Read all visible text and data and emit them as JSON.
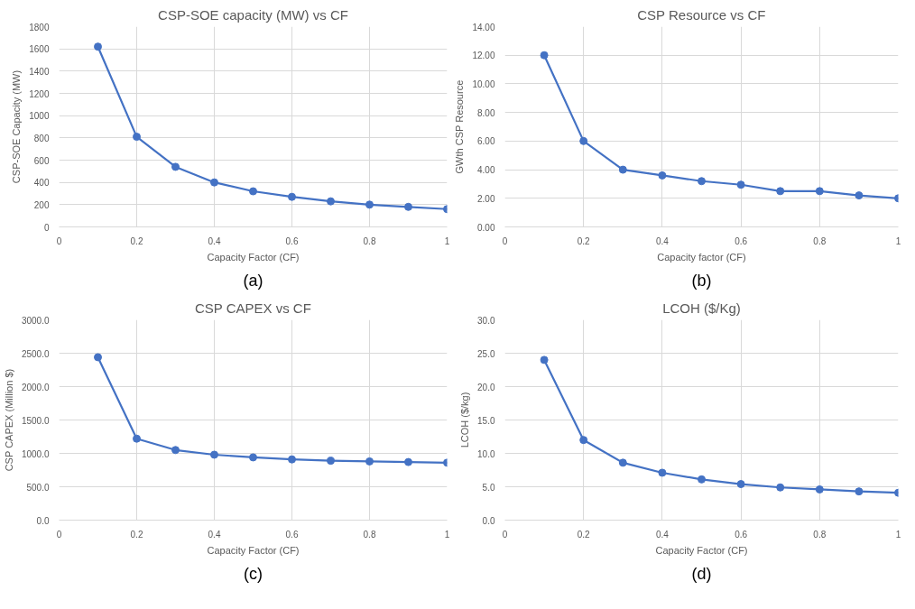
{
  "chart_data": [
    {
      "type": "line",
      "title": "CSP-SOE capacity (MW) vs CF",
      "xlabel": "Capacity Factor (CF)",
      "ylabel": "CSP-SOE Capacity (MW)",
      "annotations": [
        "(a)"
      ],
      "x": [
        0.1,
        0.2,
        0.3,
        0.4,
        0.5,
        0.6,
        0.7,
        0.8,
        0.9,
        1
      ],
      "series": [
        {
          "color": "#4472c4",
          "values": [
            1620,
            810,
            540,
            400,
            320,
            270,
            230,
            200,
            180,
            160
          ]
        }
      ],
      "xlim": [
        0,
        1
      ],
      "xticks": [
        0,
        0.2,
        0.4,
        0.6,
        0.8,
        1
      ],
      "ylim": [
        0,
        1800
      ],
      "yticks": [
        0,
        200,
        400,
        600,
        800,
        1000,
        1200,
        1400,
        1600,
        1800
      ],
      "grid": true,
      "marker": "circle",
      "line_style": "solid"
    },
    {
      "type": "line",
      "title": "CSP Resource vs CF",
      "xlabel": "Capacity factor (CF)",
      "ylabel": "GWth CSP Resource",
      "annotations": [
        "(b)"
      ],
      "x": [
        0.1,
        0.2,
        0.3,
        0.4,
        0.5,
        0.6,
        0.7,
        0.8,
        0.9,
        1
      ],
      "series": [
        {
          "color": "#4472c4",
          "values": [
            12,
            6,
            4,
            3.6,
            3.2,
            2.95,
            2.5,
            2.5,
            2.2,
            2.0
          ]
        }
      ],
      "xlim": [
        0,
        1
      ],
      "xticks": [
        0,
        0.2,
        0.4,
        0.6,
        0.8,
        1
      ],
      "ylim": [
        0,
        14
      ],
      "yticks": [
        {
          "value": 0,
          "label": "0.00"
        },
        {
          "value": 2,
          "label": "2.00"
        },
        {
          "value": 4,
          "label": "4.00"
        },
        {
          "value": 6,
          "label": "6.00"
        },
        {
          "value": 8,
          "label": "8.00"
        },
        {
          "value": 10,
          "label": "10.00"
        },
        {
          "value": 12,
          "label": "12.00"
        },
        {
          "value": 14,
          "label": "14.00"
        }
      ],
      "grid": true,
      "marker": "circle",
      "line_style": "solid"
    },
    {
      "type": "line",
      "title": "CSP CAPEX vs CF",
      "xlabel": "Capacity Factor (CF)",
      "ylabel": "CSP CAPEX (Million $)",
      "annotations": [
        "(c)"
      ],
      "x": [
        0.1,
        0.2,
        0.3,
        0.4,
        0.5,
        0.6,
        0.7,
        0.8,
        0.9,
        1
      ],
      "series": [
        {
          "color": "#4472c4",
          "values": [
            2440,
            1220,
            1050,
            980,
            940,
            910,
            890,
            880,
            870,
            860
          ]
        }
      ],
      "xlim": [
        0,
        1
      ],
      "xticks": [
        0,
        0.2,
        0.4,
        0.6,
        0.8,
        1
      ],
      "ylim": [
        0,
        3000
      ],
      "yticks": [
        {
          "value": 0,
          "label": "0.0"
        },
        {
          "value": 500,
          "label": "500.0"
        },
        {
          "value": 1000,
          "label": "1000.0"
        },
        {
          "value": 1500,
          "label": "1500.0"
        },
        {
          "value": 2000,
          "label": "2000.0"
        },
        {
          "value": 2500,
          "label": "2500.0"
        },
        {
          "value": 3000,
          "label": "3000.0"
        }
      ],
      "grid": true,
      "marker": "circle",
      "line_style": "solid"
    },
    {
      "type": "line",
      "title": "LCOH ($/Kg)",
      "xlabel": "Capacity Factor (CF)",
      "ylabel": "LCOH ($/kg)",
      "annotations": [
        "(d)"
      ],
      "x": [
        0.1,
        0.2,
        0.3,
        0.4,
        0.5,
        0.6,
        0.7,
        0.8,
        0.9,
        1
      ],
      "series": [
        {
          "color": "#4472c4",
          "values": [
            24,
            12,
            8.6,
            7.1,
            6.1,
            5.4,
            4.9,
            4.6,
            4.3,
            4.1
          ]
        }
      ],
      "xlim": [
        0,
        1
      ],
      "xticks": [
        0,
        0.2,
        0.4,
        0.6,
        0.8,
        1
      ],
      "ylim": [
        0,
        30
      ],
      "yticks": [
        {
          "value": 0,
          "label": "0.0"
        },
        {
          "value": 5,
          "label": "5.0"
        },
        {
          "value": 10,
          "label": "10.0"
        },
        {
          "value": 15,
          "label": "15.0"
        },
        {
          "value": 20,
          "label": "20.0"
        },
        {
          "value": 25,
          "label": "25.0"
        },
        {
          "value": 30,
          "label": "30.0"
        }
      ],
      "grid": true,
      "marker": "circle",
      "line_style": "solid"
    }
  ]
}
